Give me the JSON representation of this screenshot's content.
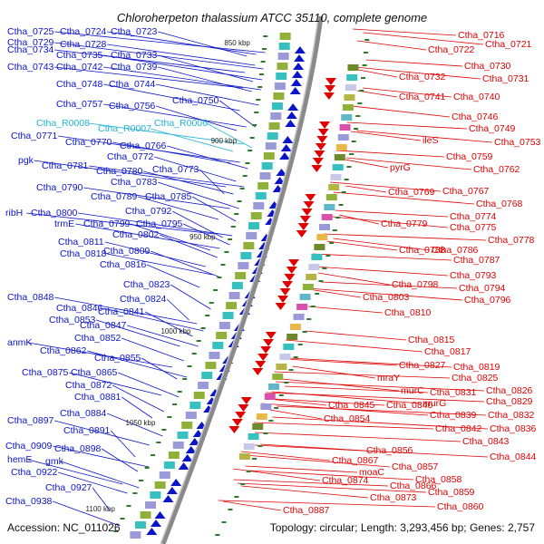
{
  "title": "Chloroherpeton thalassium ATCC 35110, complete genome",
  "accession": "Accession: NC_011026",
  "stats": "Topology: circular; Length: 3,293,456 bp; Genes: 2,757",
  "colors": {
    "plus": "#0a14c8",
    "minus": "#e00000",
    "rna": "#22b3d6",
    "backbone": "#8a8a8a",
    "ticks": "#2a7a2a"
  },
  "scale_labels": [
    "850 kbp",
    "900 kbp",
    "950 kbp",
    "1000 kbp",
    "1050 kbp",
    "1100 kbp"
  ],
  "left_labels": [
    "Ctha_0725",
    "Ctha_0724",
    "Ctha_0723",
    "Ctha_0729",
    "Ctha_0728",
    "Ctha_0734",
    "Ctha_0735",
    "Ctha_0733",
    "Ctha_0743",
    "Ctha_0742",
    "Ctha_0739",
    "Ctha_0748",
    "Ctha_0744",
    "Ctha_0757",
    "Ctha_0756",
    "Ctha_0750",
    "Ctha_R0008",
    "Ctha_R0007",
    "Ctha_R0006",
    "Ctha_0771",
    "Ctha_0770",
    "Ctha_0766",
    "Ctha_0772",
    "pgk",
    "Ctha_0781",
    "Ctha_0780",
    "Ctha_0773",
    "Ctha_0783",
    "Ctha_0790",
    "Ctha_0789",
    "Ctha_0785",
    "Ctha_0792",
    "ribH",
    "Ctha_0800",
    "trmE",
    "Ctha_0799",
    "Ctha_0795",
    "Ctha_0802",
    "Ctha_0811",
    "Ctha_0809",
    "Ctha_0818",
    "Ctha_0816",
    "Ctha_0823",
    "Ctha_0848",
    "Ctha_0824",
    "Ctha_0846",
    "Ctha_0841",
    "Ctha_0853",
    "Ctha_0847",
    "Ctha_0852",
    "anmK",
    "Ctha_0862",
    "Ctha_0855",
    "Ctha_0875",
    "Ctha_0865",
    "Ctha_0872",
    "Ctha_0881",
    "Ctha_0884",
    "Ctha_0897",
    "Ctha_0891",
    "Ctha_0909",
    "Ctha_0898",
    "hemE",
    "gmk",
    "Ctha_0922",
    "Ctha_0927",
    "Ctha_0938"
  ],
  "right_labels": [
    "Ctha_0716",
    "Ctha_0722",
    "Ctha_0721",
    "Ctha_0730",
    "Ctha_0732",
    "Ctha_0731",
    "Ctha_0741",
    "Ctha_0740",
    "Ctha_0746",
    "Ctha_0749",
    "ileS",
    "Ctha_0753",
    "Ctha_0759",
    "pyrG",
    "Ctha_0762",
    "Ctha_0769",
    "Ctha_0767",
    "Ctha_0768",
    "Ctha_0774",
    "Ctha_0779",
    "Ctha_0775",
    "Ctha_0778",
    "Ctha_0788",
    "Ctha_0786",
    "Ctha_0787",
    "Ctha_0793",
    "Ctha_0798",
    "Ctha_0794",
    "Ctha_0803",
    "Ctha_0796",
    "Ctha_0810",
    "Ctha_0815",
    "Ctha_0817",
    "Ctha_0827",
    "Ctha_0819",
    "mraY",
    "Ctha_0825",
    "Ctha_0826",
    "murC",
    "Ctha_0831",
    "Ctha_0829",
    "murG",
    "Ctha_0840",
    "Ctha_0832",
    "Ctha_0839",
    "Ctha_0845",
    "Ctha_0854",
    "Ctha_0836",
    "Ctha_0842",
    "Ctha_0843",
    "Ctha_0844",
    "Ctha_0856",
    "Ctha_0867",
    "Ctha_0857",
    "moaC",
    "Ctha_0858",
    "Ctha_0874",
    "Ctha_0866",
    "Ctha_0859",
    "Ctha_0873",
    "Ctha_0860",
    "Ctha_0887"
  ]
}
